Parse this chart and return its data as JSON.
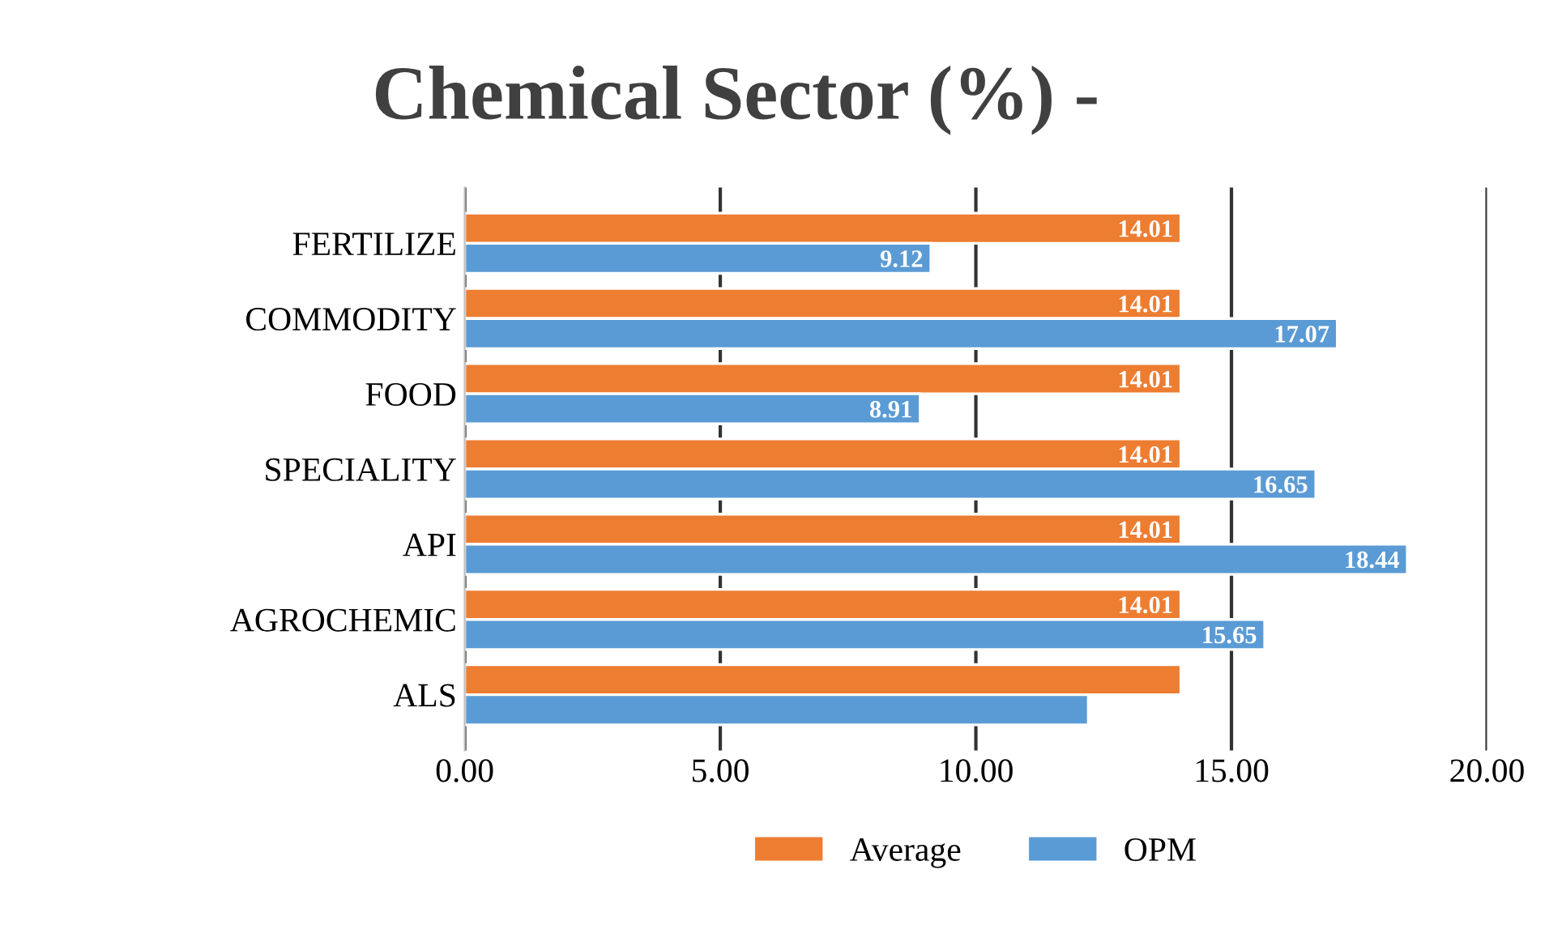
{
  "chart_data": {
    "type": "bar",
    "orientation": "horizontal",
    "title": "Chemical Sector (%) -",
    "categories": [
      "FERTILIZE",
      "COMMODITY",
      "FOOD",
      "SPECIALITY",
      "API",
      "AGROCHEMIC",
      "ALS"
    ],
    "series": [
      {
        "name": "Average",
        "color": "#ed7d31",
        "values": [
          14.01,
          14.01,
          14.01,
          14.01,
          14.01,
          14.01,
          14.01
        ],
        "value_labels": [
          "14.01",
          "14.01",
          "14.01",
          "14.01",
          "14.01",
          "14.01",
          null
        ]
      },
      {
        "name": "OPM",
        "color": "#5b9bd5",
        "values": [
          9.12,
          17.07,
          8.91,
          16.65,
          18.44,
          15.65,
          12.2
        ],
        "value_labels": [
          "9.12",
          "17.07",
          "8.91",
          "16.65",
          "18.44",
          "15.65",
          null
        ]
      }
    ],
    "xlim": [
      0,
      20
    ],
    "xticks": [
      {
        "value": 0,
        "label": "0.00"
      },
      {
        "value": 5,
        "label": "5.00"
      },
      {
        "value": 10,
        "label": "10.00"
      },
      {
        "value": 15,
        "label": "15.00"
      },
      {
        "value": 20,
        "label": "20.00"
      }
    ],
    "grid": "x",
    "legend": "bottom"
  }
}
